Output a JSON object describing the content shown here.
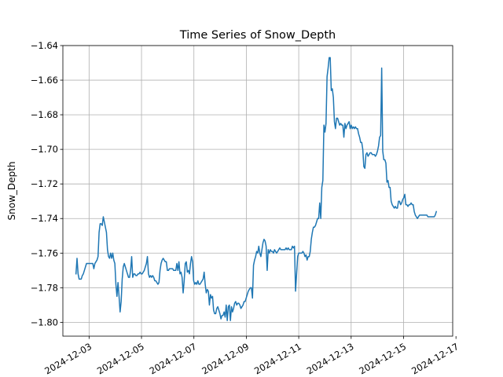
{
  "chart_data": {
    "type": "line",
    "title": "Time Series of Snow_Depth",
    "xlabel": "",
    "ylabel": "Snow_Depth",
    "grid": true,
    "line_color": "#1f77b4",
    "x_start": "2024-12-02T12:00",
    "x_end": "2024-12-16T06:00",
    "xlim": [
      "2024-12-02T00:00",
      "2024-12-16T21:00"
    ],
    "ylim": [
      -1.808,
      -1.64
    ],
    "x_ticks": [
      "2024-12-03",
      "2024-12-05",
      "2024-12-07",
      "2024-12-09",
      "2024-12-11",
      "2024-12-13",
      "2024-12-15",
      "2024-12-17"
    ],
    "y_ticks": [
      "-1.80",
      "-1.78",
      "-1.76",
      "-1.74",
      "-1.72",
      "-1.70",
      "-1.68",
      "-1.66",
      "-1.64"
    ],
    "values": [
      -1.772,
      -1.763,
      -1.772,
      -1.775,
      -1.775,
      -1.775,
      -1.773,
      -1.772,
      -1.77,
      -1.768,
      -1.766,
      -1.766,
      -1.766,
      -1.766,
      -1.766,
      -1.766,
      -1.766,
      -1.769,
      -1.766,
      -1.765,
      -1.764,
      -1.762,
      -1.748,
      -1.743,
      -1.743,
      -1.744,
      -1.739,
      -1.742,
      -1.745,
      -1.748,
      -1.758,
      -1.762,
      -1.763,
      -1.76,
      -1.763,
      -1.76,
      -1.764,
      -1.766,
      -1.778,
      -1.785,
      -1.777,
      -1.785,
      -1.794,
      -1.788,
      -1.775,
      -1.768,
      -1.766,
      -1.768,
      -1.77,
      -1.772,
      -1.774,
      -1.774,
      -1.77,
      -1.762,
      -1.774,
      -1.772,
      -1.772,
      -1.773,
      -1.773,
      -1.772,
      -1.772,
      -1.771,
      -1.772,
      -1.772,
      -1.771,
      -1.77,
      -1.768,
      -1.766,
      -1.762,
      -1.772,
      -1.774,
      -1.773,
      -1.774,
      -1.773,
      -1.774,
      -1.776,
      -1.776,
      -1.777,
      -1.778,
      -1.777,
      -1.77,
      -1.766,
      -1.764,
      -1.763,
      -1.764,
      -1.765,
      -1.765,
      -1.77,
      -1.77,
      -1.769,
      -1.769,
      -1.769,
      -1.769,
      -1.77,
      -1.77,
      -1.77,
      -1.766,
      -1.77,
      -1.765,
      -1.772,
      -1.771,
      -1.774,
      -1.783,
      -1.776,
      -1.766,
      -1.765,
      -1.771,
      -1.77,
      -1.772,
      -1.766,
      -1.762,
      -1.765,
      -1.776,
      -1.778,
      -1.777,
      -1.778,
      -1.776,
      -1.778,
      -1.778,
      -1.777,
      -1.776,
      -1.775,
      -1.771,
      -1.778,
      -1.783,
      -1.781,
      -1.782,
      -1.79,
      -1.784,
      -1.786,
      -1.785,
      -1.793,
      -1.795,
      -1.795,
      -1.792,
      -1.791,
      -1.793,
      -1.795,
      -1.798,
      -1.796,
      -1.796,
      -1.794,
      -1.797,
      -1.79,
      -1.799,
      -1.791,
      -1.79,
      -1.799,
      -1.791,
      -1.794,
      -1.792,
      -1.789,
      -1.788,
      -1.79,
      -1.789,
      -1.789,
      -1.79,
      -1.792,
      -1.791,
      -1.79,
      -1.788,
      -1.788,
      -1.786,
      -1.784,
      -1.782,
      -1.781,
      -1.78,
      -1.78,
      -1.786,
      -1.767,
      -1.764,
      -1.762,
      -1.759,
      -1.76,
      -1.756,
      -1.76,
      -1.762,
      -1.758,
      -1.754,
      -1.752,
      -1.753,
      -1.756,
      -1.77,
      -1.758,
      -1.76,
      -1.758,
      -1.759,
      -1.759,
      -1.76,
      -1.758,
      -1.759,
      -1.76,
      -1.759,
      -1.758,
      -1.757,
      -1.758,
      -1.758,
      -1.758,
      -1.758,
      -1.758,
      -1.757,
      -1.758,
      -1.757,
      -1.758,
      -1.758,
      -1.758,
      -1.756,
      -1.757,
      -1.756,
      -1.782,
      -1.772,
      -1.762,
      -1.76,
      -1.76,
      -1.76,
      -1.76,
      -1.759,
      -1.76,
      -1.762,
      -1.761,
      -1.764,
      -1.762,
      -1.762,
      -1.759,
      -1.752,
      -1.748,
      -1.745,
      -1.745,
      -1.744,
      -1.742,
      -1.74,
      -1.74,
      -1.731,
      -1.74,
      -1.722,
      -1.718,
      -1.686,
      -1.69,
      -1.685,
      -1.658,
      -1.653,
      -1.647,
      -1.647,
      -1.666,
      -1.665,
      -1.67,
      -1.684,
      -1.688,
      -1.682,
      -1.682,
      -1.684,
      -1.686,
      -1.685,
      -1.686,
      -1.686,
      -1.693,
      -1.685,
      -1.688,
      -1.686,
      -1.685,
      -1.684,
      -1.688,
      -1.686,
      -1.688,
      -1.687,
      -1.688,
      -1.687,
      -1.688,
      -1.688,
      -1.691,
      -1.693,
      -1.696,
      -1.696,
      -1.7,
      -1.71,
      -1.711,
      -1.703,
      -1.702,
      -1.704,
      -1.703,
      -1.702,
      -1.702,
      -1.703,
      -1.703,
      -1.703,
      -1.704,
      -1.703,
      -1.701,
      -1.698,
      -1.693,
      -1.692,
      -1.653,
      -1.701,
      -1.706,
      -1.706,
      -1.708,
      -1.719,
      -1.718,
      -1.722,
      -1.722,
      -1.73,
      -1.732,
      -1.733,
      -1.734,
      -1.733,
      -1.734,
      -1.734,
      -1.73,
      -1.73,
      -1.732,
      -1.731,
      -1.729,
      -1.728,
      -1.726,
      -1.732,
      -1.732,
      -1.733,
      -1.732,
      -1.732,
      -1.731,
      -1.732,
      -1.732,
      -1.736,
      -1.738,
      -1.739,
      -1.74,
      -1.739,
      -1.738,
      -1.738,
      -1.738,
      -1.738,
      -1.738,
      -1.738,
      -1.738,
      -1.738,
      -1.739,
      -1.739,
      -1.739,
      -1.739,
      -1.739,
      -1.739,
      -1.739,
      -1.738,
      -1.736
    ]
  }
}
